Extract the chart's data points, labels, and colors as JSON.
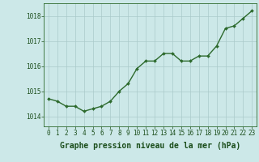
{
  "x": [
    0,
    1,
    2,
    3,
    4,
    5,
    6,
    7,
    8,
    9,
    10,
    11,
    12,
    13,
    14,
    15,
    16,
    17,
    18,
    19,
    20,
    21,
    22,
    23
  ],
  "y": [
    1014.7,
    1014.6,
    1014.4,
    1014.4,
    1014.2,
    1014.3,
    1014.4,
    1014.6,
    1015.0,
    1015.3,
    1015.9,
    1016.2,
    1016.2,
    1016.5,
    1016.5,
    1016.2,
    1016.2,
    1016.4,
    1016.4,
    1016.8,
    1017.5,
    1017.6,
    1017.9,
    1018.2
  ],
  "line_color": "#2d6a2d",
  "marker": "D",
  "marker_size": 2.0,
  "line_width": 1.0,
  "background_color": "#cce8e8",
  "grid_color": "#aacaca",
  "ylim": [
    1013.6,
    1018.5
  ],
  "xlim": [
    -0.5,
    23.5
  ],
  "yticks": [
    1014,
    1015,
    1016,
    1017,
    1018
  ],
  "xtick_labels": [
    "0",
    "1",
    "2",
    "3",
    "4",
    "5",
    "6",
    "7",
    "8",
    "9",
    "10",
    "11",
    "12",
    "13",
    "14",
    "15",
    "16",
    "17",
    "18",
    "19",
    "20",
    "21",
    "22",
    "23"
  ],
  "xlabel": "Graphe pression niveau de la mer (hPa)",
  "xlabel_fontsize": 7,
  "tick_fontsize": 5.5,
  "ytick_fontsize": 5.5,
  "tick_color": "#1a4d1a",
  "label_color": "#1a4d1a",
  "axis_color": "#2d6a2d"
}
